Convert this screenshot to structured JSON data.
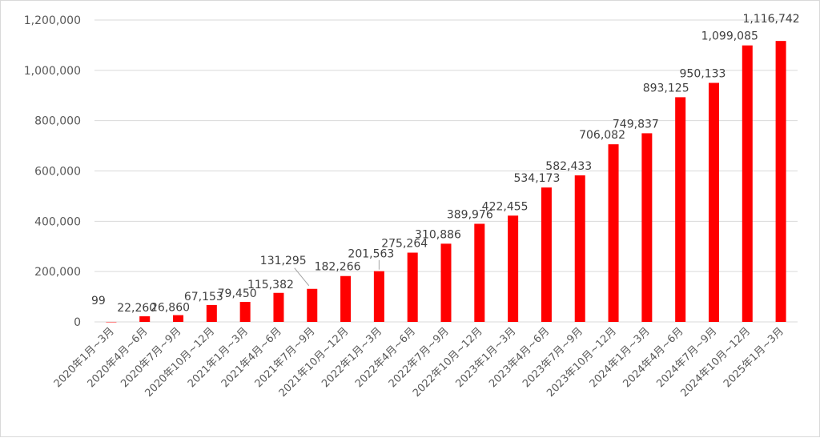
{
  "chart_data": {
    "type": "bar",
    "categories": [
      "2020年1月~3月",
      "2020年4月~6月",
      "2020年7月~9月",
      "2020年10月~12月",
      "2021年1月~3月",
      "2021年4月~6月",
      "2021年7月~9月",
      "2021年10月~12月",
      "2022年1月~3月",
      "2022年4月~6月",
      "2022年7月~9月",
      "2022年10月~12月",
      "2023年1月~3月",
      "2023年4月~6月",
      "2023年7月~9月",
      "2023年10月~12月",
      "2024年1月~3月",
      "2024年4月~6月",
      "2024年7月~9月",
      "2024年10月~12月",
      "2025年1月~3月"
    ],
    "values": [
      99,
      22260,
      26860,
      67153,
      79450,
      115382,
      131295,
      182266,
      201563,
      275264,
      310886,
      389976,
      422455,
      534173,
      582433,
      706082,
      749837,
      893125,
      950133,
      1099085,
      1116742
    ],
    "value_labels": [
      "99",
      "22,260",
      "26,860",
      "67,153",
      "79,450",
      "115,382",
      "131,295",
      "182,266",
      "201,563",
      "275,264",
      "310,886",
      "389,976",
      "422,455",
      "534,173",
      "582,433",
      "706,082",
      "749,837",
      "893,125",
      "950,133",
      "1,099,085",
      "1,116,742"
    ],
    "ylim": [
      0,
      1200000
    ],
    "yticks": [
      0,
      200000,
      400000,
      600000,
      800000,
      1000000,
      1200000
    ],
    "ytick_labels": [
      "0",
      "200,000",
      "400,000",
      "600,000",
      "800,000",
      "1,000,000",
      "1,200,000"
    ],
    "grid": true,
    "legend": "none",
    "bar_color": "#ff0000",
    "title": "",
    "xlabel": "",
    "ylabel": ""
  }
}
